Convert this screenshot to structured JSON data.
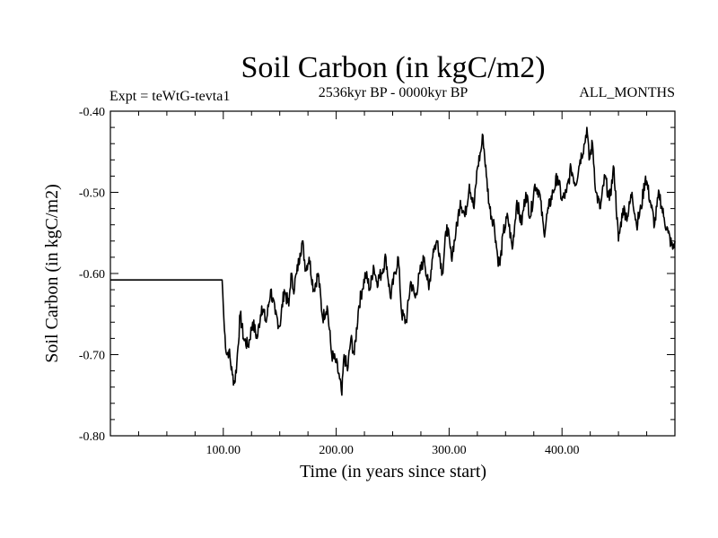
{
  "chart_data": {
    "type": "line",
    "title": "Soil Carbon (in kgC/m2)",
    "experiment": "Expt = teWtG-tevta1",
    "period": "2536kyr BP - 0000kyr BP",
    "season": "ALL_MONTHS",
    "xlabel": "Time (in years since start)",
    "ylabel": "Soil Carbon (in kgC/m2)",
    "xlim": [
      0,
      500
    ],
    "ylim": [
      -0.8,
      -0.4
    ],
    "x_ticks": [
      100,
      200,
      300,
      400
    ],
    "x_tick_labels": [
      "100.00",
      "200.00",
      "300.00",
      "400.00"
    ],
    "y_ticks": [
      -0.4,
      -0.5,
      -0.6,
      -0.7,
      -0.8
    ],
    "y_tick_labels": [
      "-0.40",
      "-0.50",
      "-0.60",
      "-0.70",
      "-0.80"
    ],
    "line_color": "#000000",
    "series": [
      {
        "name": "Soil Carbon",
        "x": [
          0,
          99,
          100,
          101,
          103,
          105,
          108,
          110,
          112,
          115,
          118,
          122,
          126,
          130,
          134,
          138,
          142,
          146,
          150,
          154,
          158,
          160,
          162,
          165,
          168,
          170,
          173,
          176,
          180,
          184,
          188,
          192,
          196,
          200,
          203,
          205,
          207,
          210,
          213,
          216,
          220,
          223,
          226,
          230,
          233,
          236,
          240,
          244,
          248,
          252,
          255,
          258,
          262,
          266,
          270,
          274,
          278,
          282,
          286,
          290,
          294,
          298,
          302,
          306,
          310,
          314,
          318,
          322,
          325,
          328,
          330,
          333,
          336,
          340,
          343,
          345,
          348,
          352,
          356,
          360,
          364,
          368,
          372,
          376,
          380,
          384,
          388,
          392,
          396,
          400,
          404,
          408,
          412,
          416,
          420,
          422,
          424,
          427,
          430,
          434,
          438,
          442,
          446,
          450,
          454,
          458,
          462,
          466,
          470,
          474,
          478,
          482,
          486,
          490,
          494,
          498,
          500
        ],
        "values": [
          -0.608,
          -0.608,
          -0.64,
          -0.67,
          -0.7,
          -0.695,
          -0.725,
          -0.735,
          -0.71,
          -0.65,
          -0.68,
          -0.69,
          -0.66,
          -0.68,
          -0.64,
          -0.66,
          -0.62,
          -0.65,
          -0.665,
          -0.62,
          -0.64,
          -0.6,
          -0.62,
          -0.6,
          -0.575,
          -0.56,
          -0.595,
          -0.58,
          -0.62,
          -0.6,
          -0.655,
          -0.64,
          -0.7,
          -0.71,
          -0.73,
          -0.75,
          -0.7,
          -0.72,
          -0.68,
          -0.7,
          -0.64,
          -0.62,
          -0.6,
          -0.62,
          -0.59,
          -0.61,
          -0.6,
          -0.58,
          -0.63,
          -0.6,
          -0.58,
          -0.65,
          -0.66,
          -0.61,
          -0.63,
          -0.6,
          -0.58,
          -0.62,
          -0.57,
          -0.56,
          -0.6,
          -0.54,
          -0.58,
          -0.55,
          -0.51,
          -0.53,
          -0.49,
          -0.52,
          -0.47,
          -0.45,
          -0.43,
          -0.48,
          -0.52,
          -0.54,
          -0.58,
          -0.59,
          -0.55,
          -0.53,
          -0.57,
          -0.51,
          -0.54,
          -0.5,
          -0.53,
          -0.49,
          -0.5,
          -0.55,
          -0.52,
          -0.5,
          -0.48,
          -0.51,
          -0.5,
          -0.47,
          -0.49,
          -0.46,
          -0.44,
          -0.42,
          -0.46,
          -0.44,
          -0.5,
          -0.52,
          -0.48,
          -0.51,
          -0.47,
          -0.56,
          -0.52,
          -0.53,
          -0.5,
          -0.54,
          -0.52,
          -0.48,
          -0.51,
          -0.54,
          -0.5,
          -0.53,
          -0.55,
          -0.57,
          -0.56
        ]
      }
    ]
  }
}
